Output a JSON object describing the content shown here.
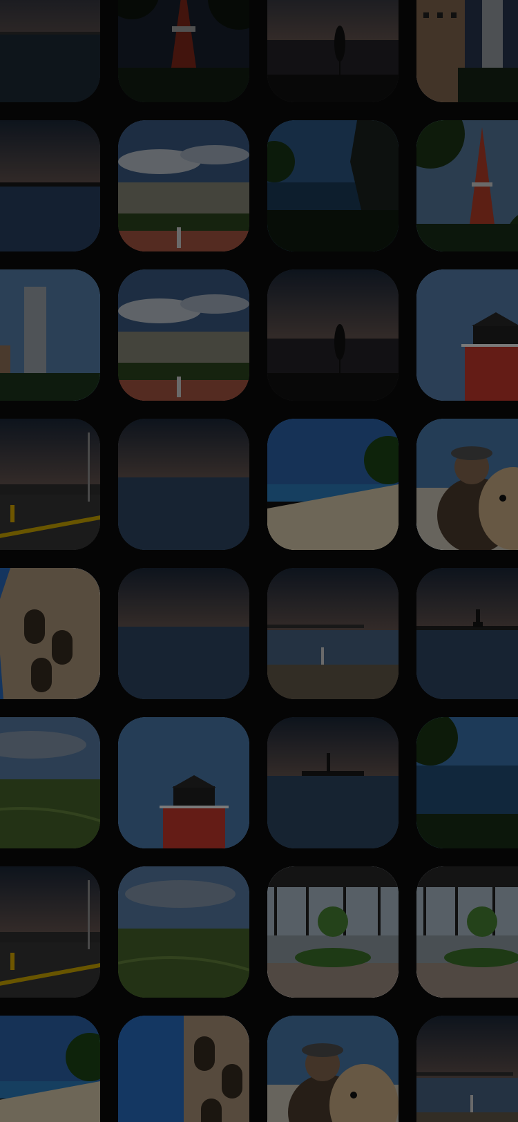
{
  "grid": {
    "rows": [
      [
        {
          "kind": "sea-dusk",
          "name": "photo-sea-dusk"
        },
        {
          "kind": "tower",
          "name": "photo-tokyo-tower"
        },
        {
          "kind": "sunset-umbrella",
          "name": "photo-sunset-umbrella"
        },
        {
          "kind": "building-tower",
          "name": "photo-building-tower"
        }
      ],
      [
        {
          "kind": "sea-calm",
          "name": "photo-calm-sea"
        },
        {
          "kind": "city-vista",
          "name": "photo-city-vista"
        },
        {
          "kind": "cliff-sea",
          "name": "photo-cliff-sea"
        },
        {
          "kind": "tower-trees",
          "name": "photo-tower-trees"
        }
      ],
      [
        {
          "kind": "skyscraper",
          "name": "photo-skyscraper"
        },
        {
          "kind": "city-vista",
          "name": "photo-city-vista-2"
        },
        {
          "kind": "sunset-umbrella",
          "name": "photo-sunset-umbrella-2"
        },
        {
          "kind": "lighthouse",
          "name": "photo-lighthouse"
        }
      ],
      [
        {
          "kind": "road-dusk",
          "name": "photo-road-dusk"
        },
        {
          "kind": "sea-sunset",
          "name": "photo-sea-sunset"
        },
        {
          "kind": "beach",
          "name": "photo-beach"
        },
        {
          "kind": "dog-selfie",
          "name": "photo-dog-selfie"
        }
      ],
      [
        {
          "kind": "colosseum",
          "name": "photo-colosseum"
        },
        {
          "kind": "sea-sunset",
          "name": "photo-sea-sunset-2"
        },
        {
          "kind": "pier",
          "name": "photo-pier"
        },
        {
          "kind": "liberty",
          "name": "photo-statue-of-liberty"
        }
      ],
      [
        {
          "kind": "field",
          "name": "photo-field"
        },
        {
          "kind": "lighthouse-low",
          "name": "photo-lighthouse-2"
        },
        {
          "kind": "liberty-sea",
          "name": "photo-statue-of-liberty-2"
        },
        {
          "kind": "cliff-trees",
          "name": "photo-cliff-trees"
        }
      ],
      [
        {
          "kind": "road-dusk",
          "name": "photo-road-dusk-2"
        },
        {
          "kind": "field",
          "name": "photo-field-2"
        },
        {
          "kind": "window-tree",
          "name": "photo-window-tree"
        },
        {
          "kind": "window-tree",
          "name": "photo-window-tree-2"
        }
      ],
      [
        {
          "kind": "beach",
          "name": "photo-beach-2"
        },
        {
          "kind": "colosseum-wide",
          "name": "photo-colosseum-2"
        },
        {
          "kind": "dog-selfie",
          "name": "photo-dog-selfie-2"
        },
        {
          "kind": "pier",
          "name": "photo-pier-2"
        }
      ]
    ]
  }
}
